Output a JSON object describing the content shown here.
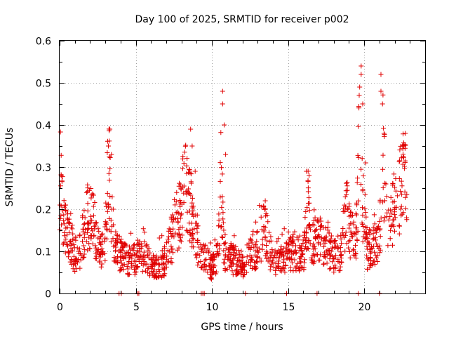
{
  "chart_data": {
    "type": "scatter",
    "title": "Day 100 of 2025, SRMTID for receiver p002",
    "xlabel": "GPS time / hours",
    "ylabel": "SRMTID / TECUs",
    "xlim": [
      0,
      24
    ],
    "ylim": [
      0,
      0.6
    ],
    "xticks": [
      0,
      5,
      10,
      15,
      20
    ],
    "xtick_labels": [
      "0",
      "5",
      "10",
      "15",
      "20"
    ],
    "yticks": [
      0,
      0.1,
      0.2,
      0.3,
      0.4,
      0.5,
      0.6
    ],
    "ytick_labels": [
      "0",
      "0.1",
      "0.2",
      "0.3",
      "0.4",
      "0.5",
      "0.6"
    ],
    "grid": true,
    "marker": "+",
    "marker_color": "#e00000",
    "series": [
      {
        "name": "SRMTID",
        "profile_x": [
          0.0,
          0.1,
          0.3,
          0.6,
          1.0,
          1.4,
          1.8,
          2.2,
          2.6,
          3.0,
          3.2,
          3.4,
          3.6,
          4.0,
          4.5,
          5.0,
          5.5,
          6.0,
          6.5,
          7.0,
          7.5,
          8.0,
          8.3,
          8.6,
          8.9,
          9.2,
          9.6,
          10.0,
          10.4,
          10.6,
          10.8,
          11.2,
          11.6,
          12.0,
          12.5,
          13.0,
          13.4,
          13.7,
          14.0,
          14.5,
          15.0,
          15.5,
          16.0,
          16.3,
          16.6,
          17.0,
          17.5,
          18.0,
          18.5,
          18.8,
          19.2,
          19.5,
          19.7,
          19.9,
          20.2,
          20.6,
          21.0,
          21.2,
          21.5,
          21.8,
          22.2,
          22.6,
          22.8
        ],
        "profile_y": [
          0.25,
          0.24,
          0.16,
          0.13,
          0.09,
          0.11,
          0.18,
          0.17,
          0.1,
          0.12,
          0.3,
          0.18,
          0.11,
          0.09,
          0.08,
          0.08,
          0.09,
          0.07,
          0.06,
          0.08,
          0.15,
          0.22,
          0.25,
          0.22,
          0.14,
          0.1,
          0.08,
          0.06,
          0.09,
          0.28,
          0.1,
          0.08,
          0.08,
          0.07,
          0.09,
          0.11,
          0.16,
          0.12,
          0.07,
          0.08,
          0.09,
          0.1,
          0.09,
          0.19,
          0.12,
          0.14,
          0.11,
          0.09,
          0.1,
          0.19,
          0.13,
          0.15,
          0.38,
          0.22,
          0.1,
          0.12,
          0.11,
          0.35,
          0.15,
          0.18,
          0.23,
          0.28,
          0.22
        ],
        "point_count": 1500,
        "spikes": [
          {
            "x": 3.3,
            "y": 0.39
          },
          {
            "x": 3.2,
            "y": 0.35
          },
          {
            "x": 3.4,
            "y": 0.33
          },
          {
            "x": 8.6,
            "y": 0.39
          },
          {
            "x": 8.9,
            "y": 0.29
          },
          {
            "x": 8.7,
            "y": 0.35
          },
          {
            "x": 10.7,
            "y": 0.48
          },
          {
            "x": 10.7,
            "y": 0.45
          },
          {
            "x": 10.8,
            "y": 0.4
          },
          {
            "x": 10.9,
            "y": 0.33
          },
          {
            "x": 19.8,
            "y": 0.54
          },
          {
            "x": 19.8,
            "y": 0.52
          },
          {
            "x": 19.7,
            "y": 0.49
          },
          {
            "x": 19.9,
            "y": 0.45
          },
          {
            "x": 20.1,
            "y": 0.31
          },
          {
            "x": 21.1,
            "y": 0.52
          },
          {
            "x": 21.1,
            "y": 0.48
          },
          {
            "x": 21.2,
            "y": 0.45
          },
          {
            "x": 21.3,
            "y": 0.38
          },
          {
            "x": 22.7,
            "y": 0.38
          },
          {
            "x": 22.6,
            "y": 0.35
          },
          {
            "x": 13.5,
            "y": 0.22
          },
          {
            "x": 16.2,
            "y": 0.29
          }
        ],
        "zero_points_x": [
          3.9,
          4.05,
          5.1,
          5.2,
          9.3,
          9.4,
          9.5,
          12.2,
          14.9,
          16.9,
          19.6,
          21.0
        ]
      }
    ]
  }
}
